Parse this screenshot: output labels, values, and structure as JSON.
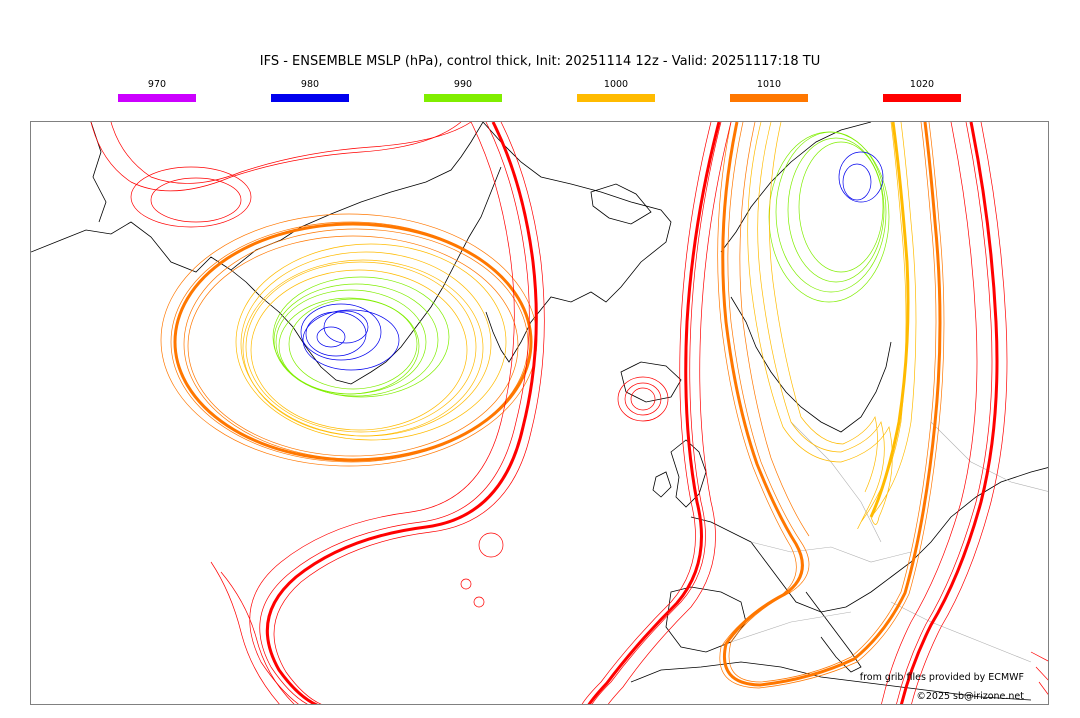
{
  "title": "IFS - ENSEMBLE MSLP (hPa), control thick, Init: 20251114 12z - Valid: 20251117:18 TU",
  "legend": [
    {
      "label": "970",
      "color": "#cc00ff"
    },
    {
      "label": "980",
      "color": "#0000ee"
    },
    {
      "label": "990",
      "color": "#80ee00"
    },
    {
      "label": "1000",
      "color": "#ffbb00"
    },
    {
      "label": "1010",
      "color": "#ff7700"
    },
    {
      "label": "1020",
      "color": "#ff0000"
    }
  ],
  "credits": {
    "source": "from grib files provided by ECMWF",
    "copyright": "©2025 sb@irizone.net"
  },
  "colors": {
    "coast": "#000000",
    "border": "#b0b0b0",
    "frame": "#808080"
  }
}
